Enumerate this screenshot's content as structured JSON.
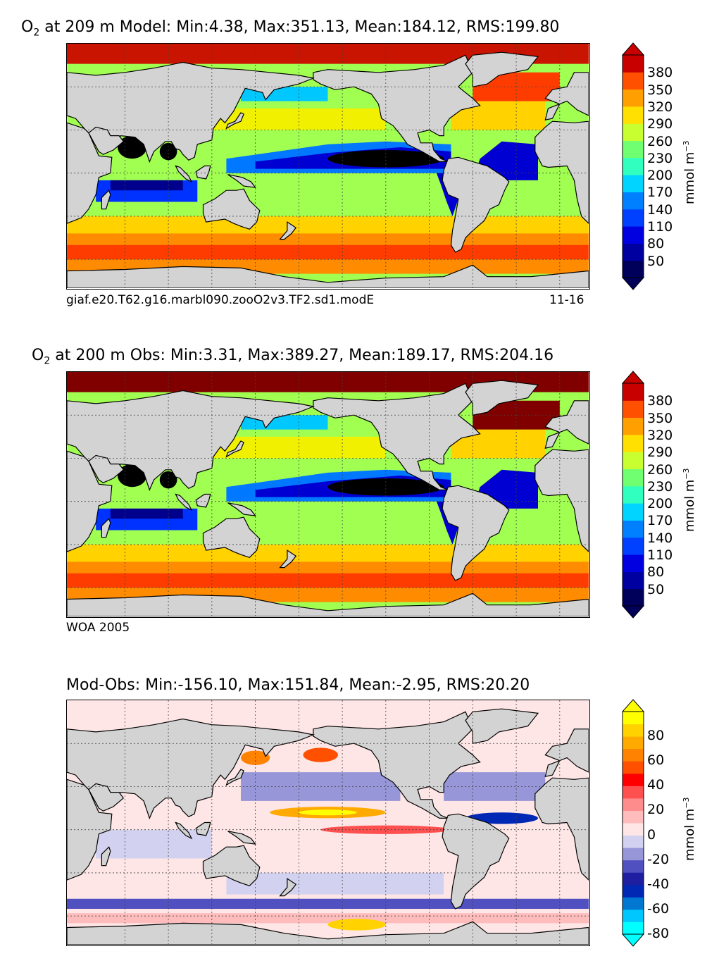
{
  "panels": [
    {
      "title_prefix": "O",
      "title_sub": "2",
      "title_rest": " at 209 m Model: Min:4.38, Max:351.13, Mean:184.12, RMS:199.80",
      "footer_left": "giaf.e20.T62.g16.marbl090.zooO2v3.TF2.sd1.modE",
      "footer_right": "11-16",
      "unit_base": "mmol m",
      "unit_exp": "−3"
    },
    {
      "title_prefix": "O",
      "title_sub": "2",
      "title_rest": " at 200 m Obs: Min:3.31, Max:389.27, Mean:189.17, RMS:204.16",
      "footer_left": "WOA 2005",
      "unit_base": "mmol m",
      "unit_exp": "−3"
    },
    {
      "title_full": "Mod-Obs: Min:-156.10, Max:151.84, Mean:-2.95, RMS:20.20",
      "unit_base": "mmol m",
      "unit_exp": "−3"
    }
  ],
  "chart_data": [
    {
      "type": "heatmap",
      "title": "O2 at 209 m Model: Min:4.38, Max:351.13, Mean:184.12, RMS:199.80",
      "variable": "O2",
      "depth_m": 209,
      "stats": {
        "min": 4.38,
        "max": 351.13,
        "mean": 184.12,
        "rms": 199.8
      },
      "colorbar": {
        "levels": [
          35,
          50,
          65,
          80,
          95,
          110,
          125,
          140,
          155,
          170,
          185,
          200,
          215,
          230,
          245,
          260,
          275,
          290,
          305,
          320,
          335,
          350,
          365,
          380,
          395
        ],
        "tick_labels": [
          "50",
          "80",
          "110",
          "140",
          "170",
          "200",
          "230",
          "260",
          "290",
          "320",
          "350",
          "380"
        ],
        "colors": [
          "#000080",
          "#0000c8",
          "#0028ff",
          "#0064ff",
          "#00b4ff",
          "#00e6ff",
          "#30ffc8",
          "#60ff90",
          "#98ff58",
          "#c8ff30",
          "#f0f000",
          "#ffd200",
          "#ffaa00",
          "#ff8200",
          "#ff5000",
          "#f01400",
          "#b40000",
          "#800000"
        ],
        "extend": "both",
        "label": "mmol m^-3"
      },
      "axes": {
        "lon_range": [
          20,
          380
        ],
        "lat_range": [
          -80,
          90
        ]
      }
    },
    {
      "type": "heatmap",
      "title": "O2 at 200 m Obs: Min:3.31, Max:389.27, Mean:189.17, RMS:204.16",
      "variable": "O2",
      "depth_m": 200,
      "source": "WOA 2005",
      "stats": {
        "min": 3.31,
        "max": 389.27,
        "mean": 189.17,
        "rms": 204.16
      },
      "colorbar": {
        "tick_labels": [
          "50",
          "80",
          "110",
          "140",
          "170",
          "200",
          "230",
          "260",
          "290",
          "320",
          "350",
          "380"
        ],
        "extend": "both",
        "label": "mmol m^-3"
      },
      "axes": {
        "lon_range": [
          20,
          380
        ],
        "lat_range": [
          -80,
          90
        ]
      }
    },
    {
      "type": "heatmap",
      "title": "Mod-Obs: Min:-156.10, Max:151.84, Mean:-2.95, RMS:20.20",
      "stats": {
        "min": -156.1,
        "max": 151.84,
        "mean": -2.95,
        "rms": 20.2
      },
      "colorbar": {
        "tick_labels": [
          "-80",
          "-60",
          "-40",
          "-20",
          "0",
          "20",
          "40",
          "60",
          "80"
        ],
        "colors": [
          "#00ffff",
          "#00c8ff",
          "#0078d2",
          "#0028b4",
          "#1e1ea0",
          "#5050c0",
          "#9696d8",
          "#d2d2f0",
          "#ffe6e6",
          "#ffbcbc",
          "#ff8c8c",
          "#ff5050",
          "#ff0000",
          "#ff5000",
          "#ff8200",
          "#ffaa00",
          "#ffd200",
          "#ffff00"
        ],
        "extend": "both",
        "label": "mmol m^-3"
      },
      "axes": {
        "lon_range": [
          20,
          380
        ],
        "lat_range": [
          -80,
          90
        ]
      }
    }
  ]
}
